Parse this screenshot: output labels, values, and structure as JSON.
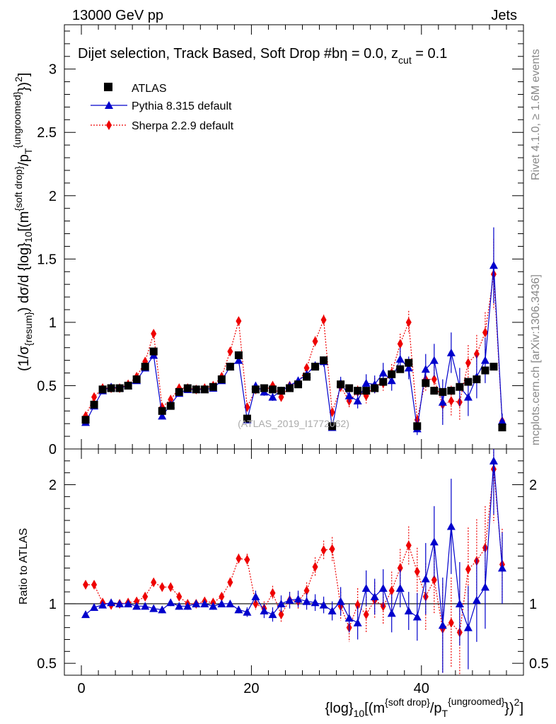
{
  "header": {
    "energy": "13000 GeV pp",
    "process": "Jets"
  },
  "plot_title": "Dijet selection, Track Based, Soft Drop #b",
  "plot_title_suffix": "η = 0.0, z",
  "plot_title_sub": "cut",
  "plot_title_tail": " = 0.1",
  "side_labels": {
    "rivet": "Rivet 4.1.0, ≥ 1.6M events",
    "mcplots": "mcplots.cern.ch [arXiv:1306.3436]"
  },
  "watermark": "(ATLAS_2019_I1772062)",
  "legend": [
    {
      "name": "ATLAS",
      "color": "#000000",
      "marker": "square"
    },
    {
      "name": "Pythia 8.315 default",
      "color": "#0000cc",
      "marker": "triangle"
    },
    {
      "name": "Sherpa 2.2.9 default",
      "color": "#ee0000",
      "marker": "diamond"
    }
  ],
  "ylabel_main": {
    "p1": "(1/σ",
    "s1": "{resum}",
    "p2": ") dσ/d {log}",
    "s2": "10",
    "p3": "[(m",
    "sup1": "{soft drop}",
    "p4": "/p",
    "s3": "T",
    "sup2": "{ungroomed}",
    "p5": "})",
    "sup3": "2",
    "p6": "]"
  },
  "ylabel_ratio": "Ratio to ATLAS",
  "xlabel": {
    "p1": "{log}",
    "s1": "10",
    "p2": "[(m",
    "sup1": "{soft drop}",
    "p3": "/p",
    "s2": "T",
    "sup2": "{ungroomed}",
    "p4": "})",
    "sup3": "2",
    "p5": "]"
  },
  "chart_data": {
    "type": "scatter",
    "x": [
      0.5,
      1.5,
      2.5,
      3.5,
      4.5,
      5.5,
      6.5,
      7.5,
      8.5,
      9.5,
      10.5,
      11.5,
      12.5,
      13.5,
      14.5,
      15.5,
      16.5,
      17.5,
      18.5,
      19.5,
      20.5,
      21.5,
      22.5,
      23.5,
      24.5,
      25.5,
      26.5,
      27.5,
      28.5,
      29.5,
      30.5,
      31.5,
      32.5,
      33.5,
      34.5,
      35.5,
      36.5,
      37.5,
      38.5,
      39.5,
      40.5,
      41.5,
      42.5,
      43.5,
      44.5,
      45.5,
      46.5,
      47.5,
      48.5,
      49.5
    ],
    "xlim": [
      -2,
      52
    ],
    "main_ylim": [
      0,
      3.35
    ],
    "main_yticks": [
      0,
      0.5,
      1,
      1.5,
      2,
      2.5,
      3
    ],
    "main_ytick_labels": [
      "0",
      "0.5",
      "1",
      "1.5",
      "2",
      "2.5",
      "3"
    ],
    "ratio_ylim": [
      0.4,
      2.3
    ],
    "ratio_yticks": [
      0.5,
      1,
      2
    ],
    "ratio_ytick_labels": [
      "0.5",
      "1",
      "2"
    ],
    "xticks": [
      0,
      20,
      40
    ],
    "xtick_labels": [
      "0",
      "20",
      "40"
    ],
    "series": [
      {
        "name": "ATLAS",
        "color": "#000000",
        "values": [
          0.23,
          0.35,
          0.47,
          0.48,
          0.48,
          0.5,
          0.55,
          0.65,
          0.77,
          0.3,
          0.34,
          0.45,
          0.48,
          0.47,
          0.47,
          0.49,
          0.55,
          0.65,
          0.74,
          0.24,
          0.47,
          0.48,
          0.47,
          0.46,
          0.48,
          0.51,
          0.57,
          0.65,
          0.7,
          0.18,
          0.51,
          0.48,
          0.46,
          0.46,
          0.48,
          0.53,
          0.59,
          0.63,
          0.68,
          0.18,
          0.52,
          0.46,
          0.45,
          0.46,
          0.49,
          0.53,
          0.55,
          0.62,
          0.65,
          0.17
        ],
        "errors": [
          0.01,
          0.01,
          0.01,
          0.01,
          0.01,
          0.01,
          0.01,
          0.01,
          0.02,
          0.01,
          0.01,
          0.01,
          0.01,
          0.01,
          0.01,
          0.01,
          0.01,
          0.01,
          0.02,
          0.01,
          0.01,
          0.01,
          0.01,
          0.01,
          0.01,
          0.01,
          0.01,
          0.01,
          0.02,
          0.01,
          0.01,
          0.01,
          0.01,
          0.01,
          0.01,
          0.01,
          0.01,
          0.01,
          0.02,
          0.01,
          0.02,
          0.02,
          0.02,
          0.02,
          0.02,
          0.02,
          0.02,
          0.02,
          0.02,
          0.01
        ]
      },
      {
        "name": "Pythia 8.315 default",
        "color": "#0000cc",
        "values": [
          0.21,
          0.34,
          0.46,
          0.49,
          0.48,
          0.5,
          0.54,
          0.64,
          0.74,
          0.26,
          0.35,
          0.44,
          0.47,
          0.47,
          0.47,
          0.48,
          0.54,
          0.65,
          0.7,
          0.23,
          0.5,
          0.45,
          0.41,
          0.46,
          0.5,
          0.54,
          0.59,
          0.66,
          0.69,
          0.17,
          0.52,
          0.42,
          0.38,
          0.52,
          0.51,
          0.6,
          0.54,
          0.71,
          0.64,
          0.16,
          0.63,
          0.7,
          0.37,
          0.76,
          0.49,
          0.41,
          0.57,
          0.7,
          1.45,
          0.22
        ],
        "errors": [
          0.01,
          0.01,
          0.01,
          0.01,
          0.01,
          0.01,
          0.01,
          0.01,
          0.02,
          0.01,
          0.01,
          0.01,
          0.01,
          0.01,
          0.01,
          0.01,
          0.01,
          0.01,
          0.02,
          0.02,
          0.02,
          0.03,
          0.03,
          0.03,
          0.03,
          0.03,
          0.03,
          0.03,
          0.04,
          0.02,
          0.05,
          0.05,
          0.06,
          0.07,
          0.07,
          0.08,
          0.08,
          0.09,
          0.09,
          0.05,
          0.12,
          0.13,
          0.18,
          0.16,
          0.15,
          0.15,
          0.17,
          0.18,
          0.3,
          0.06
        ]
      },
      {
        "name": "Sherpa 2.2.9 default",
        "color": "#ee0000",
        "values": [
          0.26,
          0.41,
          0.48,
          0.48,
          0.48,
          0.51,
          0.57,
          0.69,
          0.91,
          0.33,
          0.39,
          0.48,
          0.48,
          0.47,
          0.48,
          0.5,
          0.57,
          0.77,
          1.01,
          0.33,
          0.47,
          0.46,
          0.5,
          0.41,
          0.5,
          0.52,
          0.64,
          0.85,
          1.02,
          0.29,
          0.49,
          0.38,
          0.45,
          0.42,
          0.5,
          0.52,
          0.6,
          0.83,
          1.0,
          0.23,
          0.55,
          0.55,
          0.35,
          0.38,
          0.37,
          0.68,
          0.75,
          0.92,
          1.38,
          0.22
        ],
        "errors": [
          0.01,
          0.01,
          0.01,
          0.01,
          0.01,
          0.01,
          0.01,
          0.01,
          0.02,
          0.01,
          0.01,
          0.01,
          0.01,
          0.01,
          0.01,
          0.01,
          0.01,
          0.02,
          0.02,
          0.02,
          0.02,
          0.03,
          0.03,
          0.03,
          0.03,
          0.03,
          0.03,
          0.04,
          0.04,
          0.02,
          0.04,
          0.05,
          0.05,
          0.06,
          0.06,
          0.06,
          0.07,
          0.08,
          0.09,
          0.04,
          0.1,
          0.1,
          0.12,
          0.12,
          0.14,
          0.14,
          0.15,
          0.16,
          0.28,
          0.05
        ]
      }
    ],
    "ratio_series": [
      {
        "name": "Pythia 8.315 default",
        "color": "#0000cc",
        "values": [
          0.91,
          0.97,
          0.99,
          1.01,
          1.0,
          1.0,
          0.98,
          0.98,
          0.96,
          0.95,
          1.01,
          0.98,
          0.98,
          1.0,
          1.0,
          0.98,
          1.0,
          1.0,
          0.95,
          0.93,
          1.06,
          0.94,
          0.91,
          1.0,
          1.03,
          1.04,
          1.02,
          1.01,
          0.99,
          0.94,
          1.02,
          0.88,
          0.84,
          1.13,
          1.06,
          1.13,
          0.92,
          1.13,
          0.94,
          0.89,
          1.21,
          1.52,
          0.82,
          1.65,
          1.0,
          0.8,
          1.03,
          1.14,
          2.2,
          1.3
        ],
        "errors": [
          0.02,
          0.02,
          0.02,
          0.02,
          0.02,
          0.02,
          0.02,
          0.02,
          0.02,
          0.03,
          0.03,
          0.03,
          0.03,
          0.03,
          0.03,
          0.03,
          0.03,
          0.03,
          0.03,
          0.04,
          0.05,
          0.06,
          0.06,
          0.07,
          0.07,
          0.07,
          0.07,
          0.07,
          0.07,
          0.08,
          0.12,
          0.12,
          0.14,
          0.15,
          0.15,
          0.16,
          0.16,
          0.16,
          0.16,
          0.2,
          0.3,
          0.3,
          0.4,
          0.4,
          0.35,
          0.35,
          0.35,
          0.35,
          0.45,
          0.3
        ]
      },
      {
        "name": "Sherpa 2.2.9 default",
        "color": "#ee0000",
        "values": [
          1.16,
          1.16,
          1.01,
          0.99,
          1.0,
          1.01,
          1.02,
          1.06,
          1.18,
          1.14,
          1.14,
          1.06,
          1.0,
          1.0,
          1.02,
          1.01,
          1.06,
          1.18,
          1.38,
          1.37,
          1.0,
          0.96,
          1.09,
          0.91,
          1.03,
          1.02,
          1.11,
          1.31,
          1.45,
          1.46,
          0.98,
          0.8,
          0.99,
          0.91,
          1.03,
          0.98,
          1.11,
          1.3,
          1.49,
          1.27,
          1.06,
          1.2,
          0.79,
          0.84,
          0.76,
          1.29,
          1.36,
          1.47,
          2.13,
          1.33
        ],
        "errors": [
          0.02,
          0.02,
          0.02,
          0.02,
          0.02,
          0.02,
          0.02,
          0.02,
          0.03,
          0.03,
          0.03,
          0.03,
          0.03,
          0.03,
          0.03,
          0.03,
          0.03,
          0.04,
          0.04,
          0.05,
          0.05,
          0.06,
          0.06,
          0.07,
          0.07,
          0.07,
          0.07,
          0.08,
          0.08,
          0.1,
          0.12,
          0.12,
          0.14,
          0.15,
          0.15,
          0.15,
          0.16,
          0.16,
          0.16,
          0.2,
          0.28,
          0.28,
          0.38,
          0.38,
          0.35,
          0.35,
          0.35,
          0.35,
          0.45,
          0.3
        ]
      }
    ]
  }
}
